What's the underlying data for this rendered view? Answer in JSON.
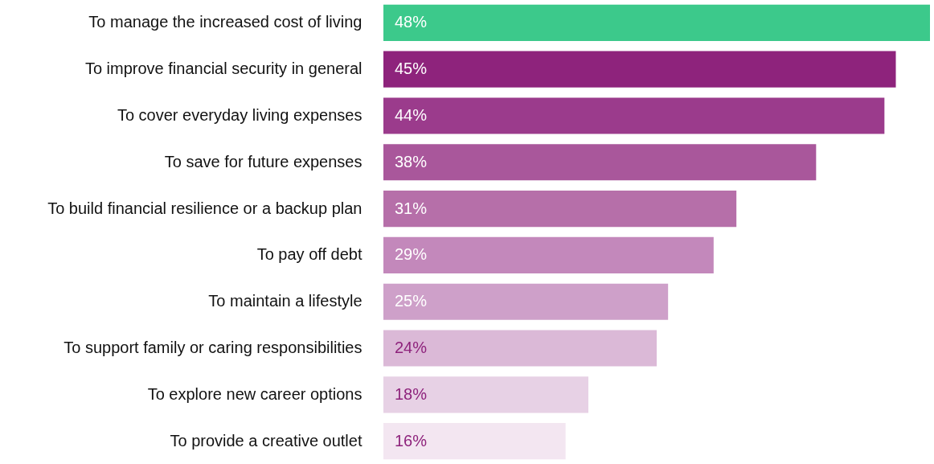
{
  "chart_data": {
    "type": "bar",
    "orientation": "horizontal",
    "categories": [
      "To manage the increased cost of living",
      "To improve financial security in general",
      "To cover everyday living expenses",
      "To save for future expenses",
      "To build financial resilience or a backup plan",
      "To pay off debt",
      "To maintain a lifestyle",
      "To support family or caring responsibilities",
      "To explore new career options",
      "To provide a creative outlet"
    ],
    "values": [
      48,
      45,
      44,
      38,
      31,
      29,
      25,
      24,
      18,
      16
    ],
    "colors": [
      "#3cc98b",
      "#8e237c",
      "#9b3b8c",
      "#a9579b",
      "#b66fa9",
      "#c388bb",
      "#cea0c9",
      "#dbb9d7",
      "#e7d1e5",
      "#f3e6f1"
    ],
    "value_labels": [
      "48%",
      "45%",
      "44%",
      "38%",
      "31%",
      "29%",
      "25%",
      "24%",
      "18%",
      "16%"
    ],
    "grid": false
  }
}
